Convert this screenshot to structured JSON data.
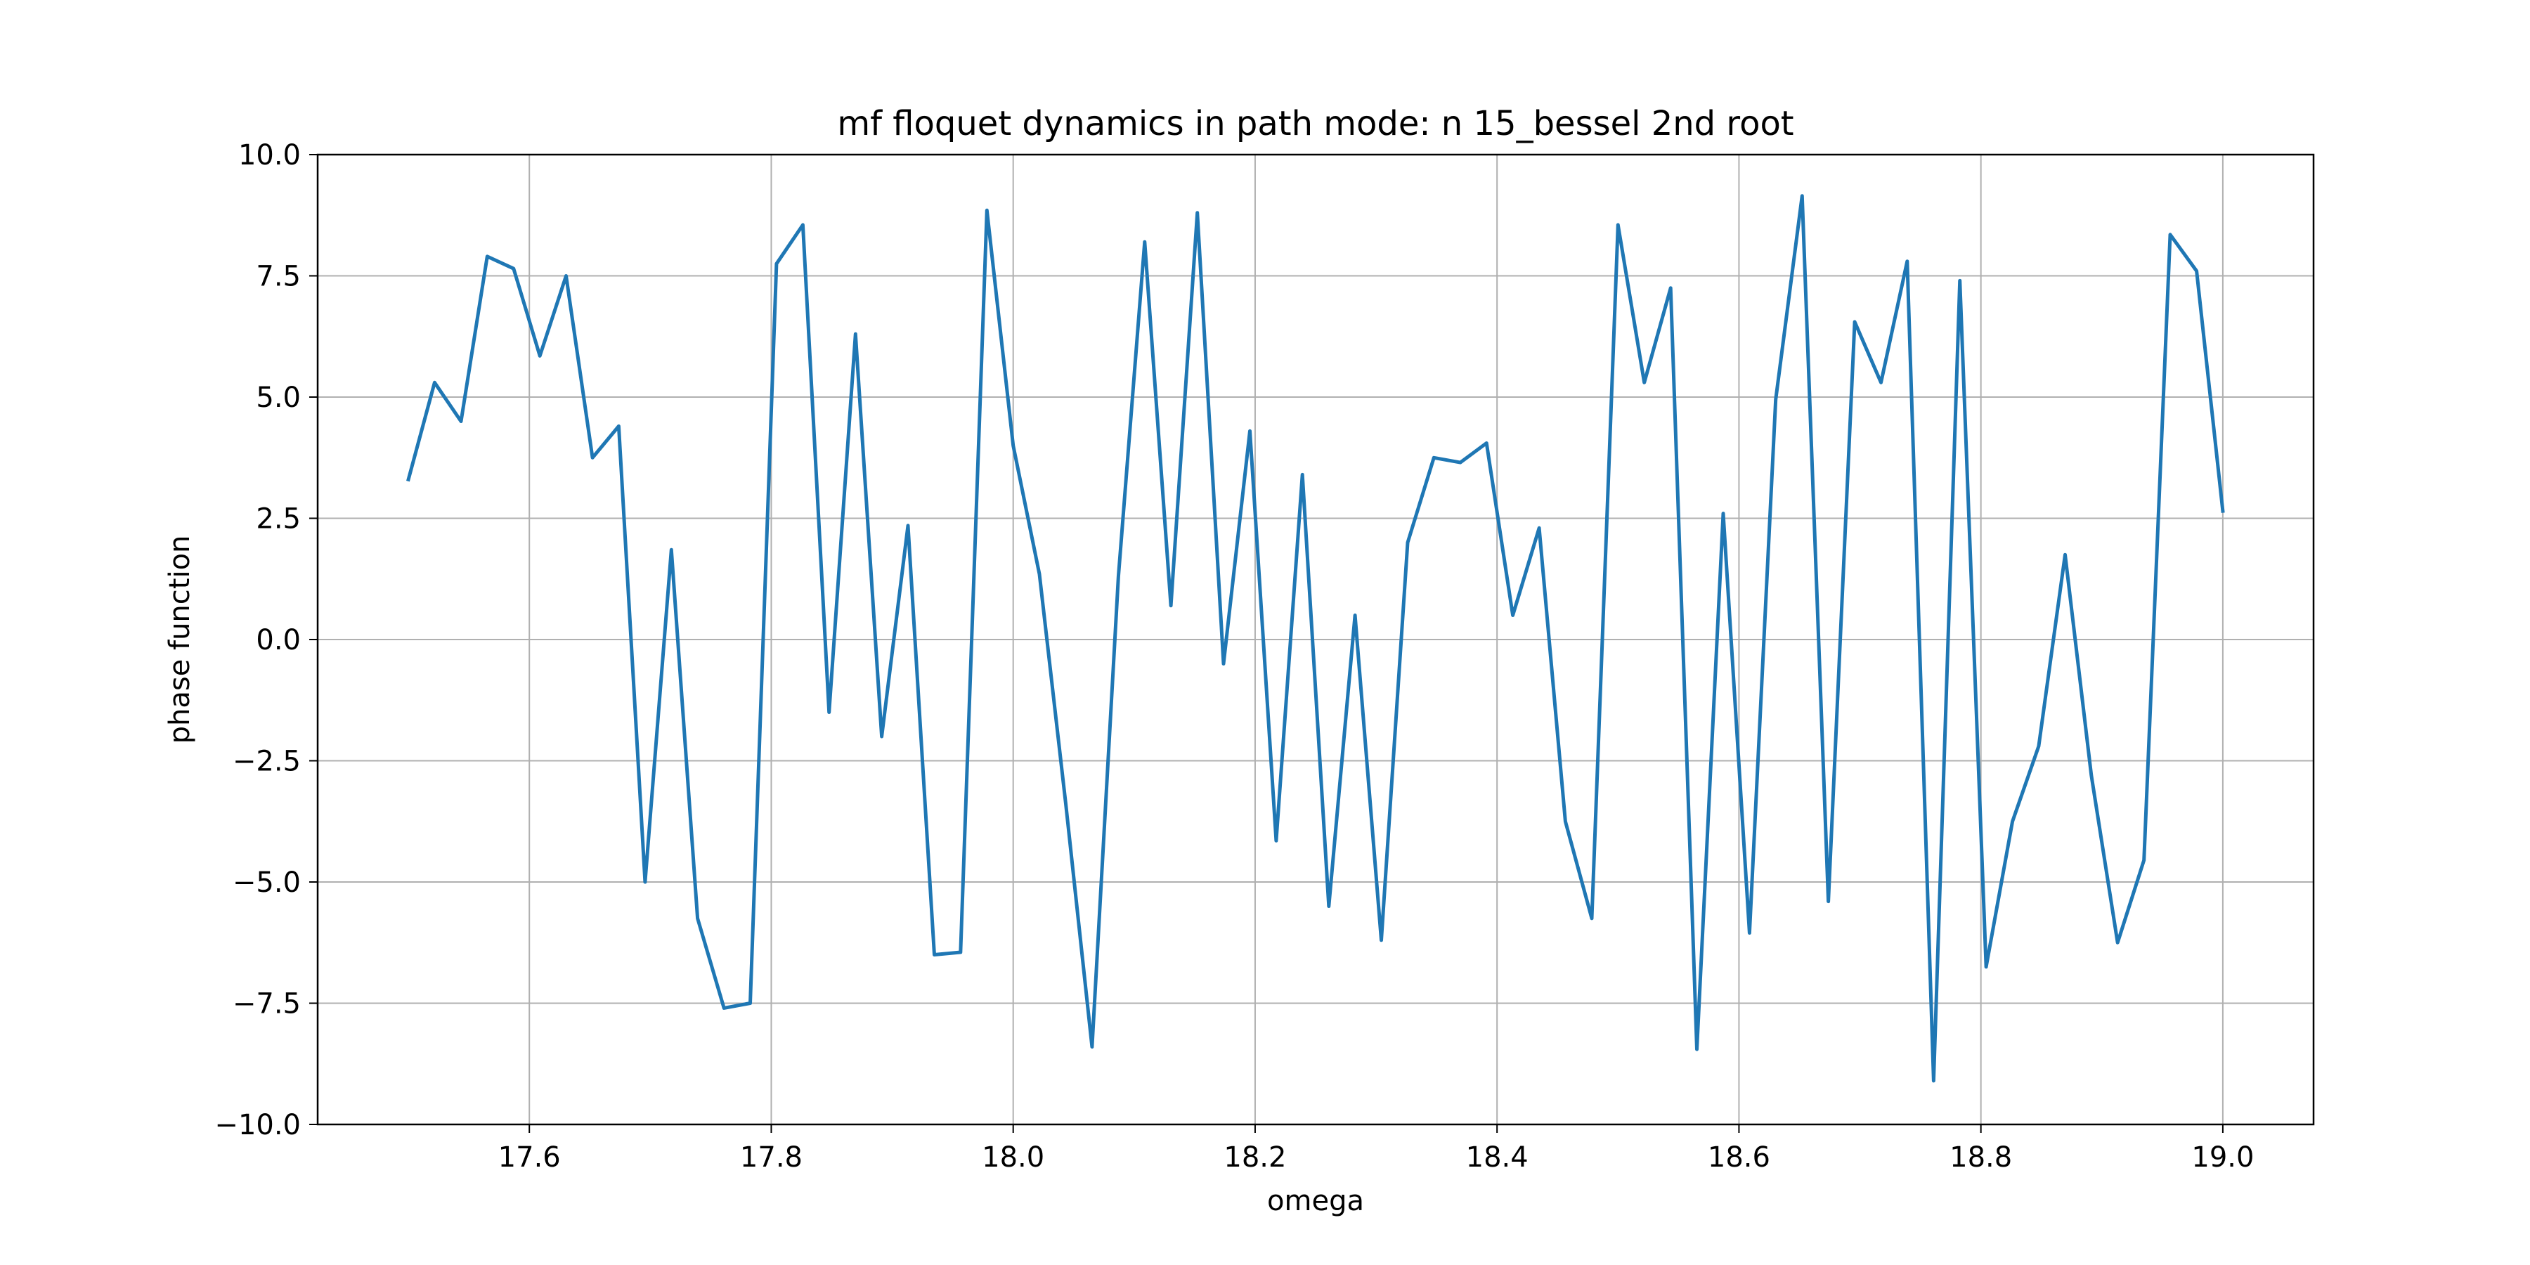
{
  "chart_data": {
    "type": "line",
    "title": "mf floquet dynamics in path mode: n 15_bessel 2nd root",
    "xlabel": "omega",
    "ylabel": "phase function",
    "xlim": [
      17.425,
      19.075
    ],
    "ylim": [
      -10.0,
      10.0
    ],
    "x_ticks": [
      17.6,
      17.8,
      18.0,
      18.2,
      18.4,
      18.6,
      18.8,
      19.0
    ],
    "x_tick_labels": [
      "17.6",
      "17.8",
      "18.0",
      "18.2",
      "18.4",
      "18.6",
      "18.8",
      "19.0"
    ],
    "y_ticks": [
      10.0,
      7.5,
      5.0,
      2.5,
      0.0,
      -2.5,
      -5.0,
      -7.5,
      -10.0
    ],
    "y_tick_labels": [
      "10.0",
      "7.5",
      "5.0",
      "2.5",
      "0.0",
      "−2.5",
      "−5.0",
      "−7.5",
      "−10.0"
    ],
    "grid": true,
    "series": [
      {
        "color": "#1f77b4",
        "x": [
          17.5,
          17.5217,
          17.5435,
          17.5652,
          17.587,
          17.6087,
          17.6304,
          17.6522,
          17.6739,
          17.6957,
          17.7174,
          17.7391,
          17.7609,
          17.7826,
          17.8043,
          17.8261,
          17.8478,
          17.8696,
          17.8913,
          17.913,
          17.9348,
          17.9565,
          17.9783,
          18.0,
          18.0217,
          18.0435,
          18.0652,
          18.087,
          18.1087,
          18.1304,
          18.1522,
          18.1739,
          18.1957,
          18.2174,
          18.2391,
          18.2609,
          18.2826,
          18.3043,
          18.3261,
          18.3478,
          18.3696,
          18.3913,
          18.413,
          18.4348,
          18.4565,
          18.4783,
          18.5,
          18.5217,
          18.5435,
          18.5652,
          18.587,
          18.6087,
          18.6304,
          18.6522,
          18.6739,
          18.6957,
          18.7174,
          18.7391,
          18.7609,
          18.7826,
          18.8043,
          18.8261,
          18.8478,
          18.8696,
          18.8913,
          18.913,
          18.9348,
          18.9565,
          18.9783,
          19.0
        ],
        "y": [
          3.3,
          5.3,
          4.5,
          7.9,
          7.65,
          5.85,
          7.5,
          3.75,
          4.4,
          -5.0,
          1.85,
          -5.75,
          -7.6,
          -7.5,
          7.75,
          8.55,
          -1.5,
          6.3,
          -2.0,
          2.35,
          -6.5,
          -6.45,
          8.85,
          4.0,
          1.35,
          -3.4,
          -8.4,
          1.3,
          8.2,
          0.7,
          8.8,
          -0.5,
          4.3,
          -4.15,
          3.4,
          -5.5,
          0.5,
          -6.2,
          2.0,
          3.75,
          3.65,
          4.05,
          0.5,
          2.3,
          -3.75,
          -5.75,
          8.55,
          5.3,
          7.25,
          -8.45,
          2.6,
          -6.05,
          4.95,
          9.15,
          -5.4,
          6.55,
          5.3,
          7.8,
          -9.1,
          7.4,
          -6.75,
          -3.75,
          -2.2,
          1.75,
          -2.8,
          -6.25,
          -4.55,
          8.35,
          7.6,
          2.65
        ]
      }
    ]
  }
}
